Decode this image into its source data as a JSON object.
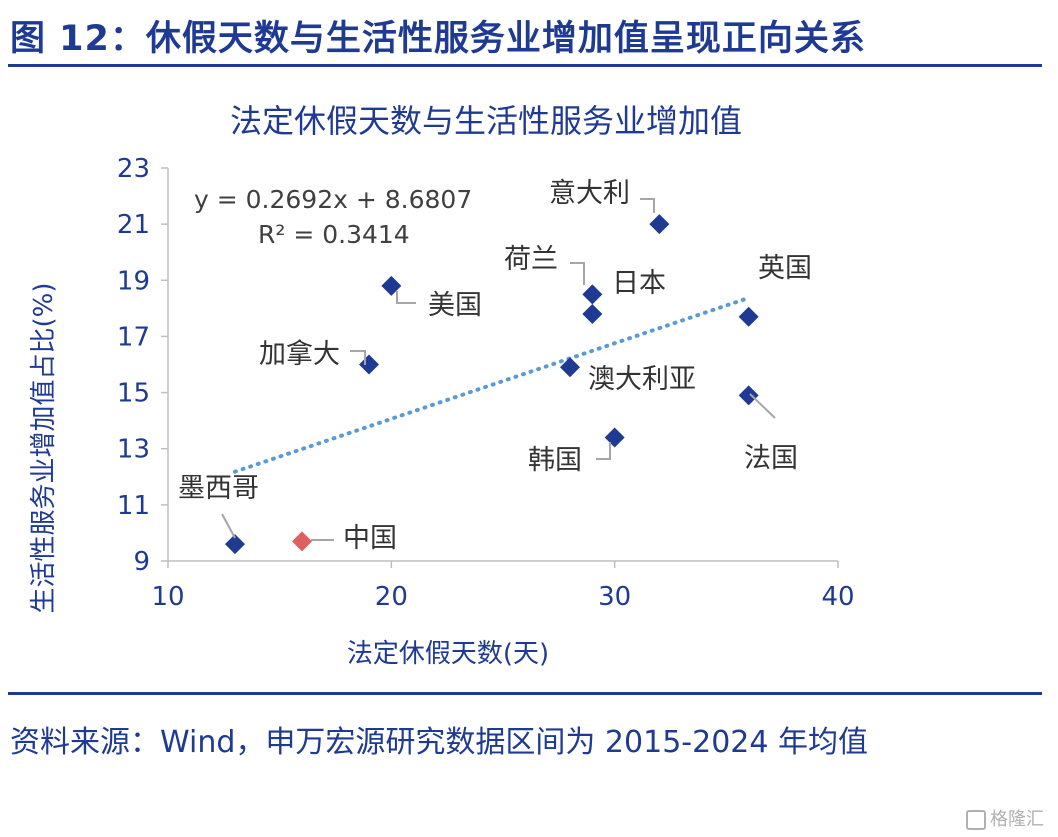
{
  "figure_title": "图 12：休假天数与生活性服务业增加值呈现正向关系",
  "source_note": "资料来源：Wind，申万宏源研究数据区间为 2015-2024 年均值",
  "watermark": "格隆汇",
  "chart_data": {
    "type": "scatter",
    "title": "法定休假天数与生活性服务业增加值",
    "xlabel": "法定休假天数(天)",
    "ylabel": "生活性服务业增加值占比(%)",
    "xlim": [
      10,
      40
    ],
    "ylim": [
      9,
      23
    ],
    "x_ticks": [
      "10",
      "20",
      "30",
      "40"
    ],
    "y_ticks": [
      "9",
      "11",
      "13",
      "15",
      "17",
      "19",
      "21",
      "23"
    ],
    "grid": false,
    "points": [
      {
        "label": "意大利",
        "x": 32,
        "y": 21.0,
        "color": "#1f3a93"
      },
      {
        "label": "荷兰",
        "x": 29,
        "y": 18.5,
        "color": "#1f3a93"
      },
      {
        "label": "日本",
        "x": 29,
        "y": 17.8,
        "color": "#1f3a93"
      },
      {
        "label": "英国",
        "x": 36,
        "y": 17.7,
        "color": "#1f3a93"
      },
      {
        "label": "美国",
        "x": 20,
        "y": 18.8,
        "color": "#1f3a93"
      },
      {
        "label": "加拿大",
        "x": 19,
        "y": 16.0,
        "color": "#1f3a93"
      },
      {
        "label": "澳大利亚",
        "x": 28,
        "y": 15.9,
        "color": "#1f3a93"
      },
      {
        "label": "法国",
        "x": 36,
        "y": 14.9,
        "color": "#1f3a93"
      },
      {
        "label": "韩国",
        "x": 30,
        "y": 13.4,
        "color": "#1f3a93"
      },
      {
        "label": "墨西哥",
        "x": 13,
        "y": 9.6,
        "color": "#1f3a93"
      },
      {
        "label": "中国",
        "x": 16,
        "y": 9.7,
        "color": "#e06060"
      }
    ],
    "trendline": {
      "equation": "y = 0.2692x + 8.6807",
      "r_squared": "R² = 0.3414",
      "slope": 0.2692,
      "intercept": 8.6807,
      "x_range": [
        13,
        36
      ],
      "style": "dotted",
      "color": "#5b9bd5"
    }
  }
}
